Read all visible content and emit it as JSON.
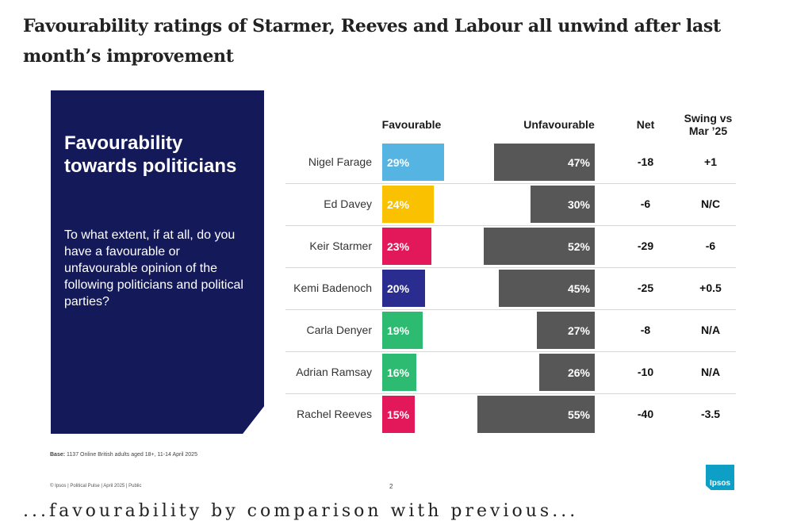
{
  "headline": "Favourability ratings of Starmer, Reeves and Labour all unwind after last month’s improvement",
  "panel": {
    "title": "Favourability towards politicians",
    "question": "To what extent, if at all, do you have a favourable or unfavourable opinion of the following politicians and political parties?"
  },
  "columns": {
    "favourable": "Favourable",
    "unfavourable": "Unfavourable",
    "net": "Net",
    "swing": "Swing vs Mar ’25"
  },
  "chart_data": {
    "type": "bar",
    "title": "Favourability towards politicians",
    "categories": [
      "Nigel Farage",
      "Ed Davey",
      "Keir Starmer",
      "Kemi Badenoch",
      "Carla Denyer",
      "Adrian Ramsay",
      "Rachel Reeves"
    ],
    "series": [
      {
        "name": "Favourable",
        "values": [
          29,
          24,
          23,
          20,
          19,
          16,
          15
        ],
        "labels": [
          "29%",
          "24%",
          "23%",
          "20%",
          "19%",
          "16%",
          "15%"
        ],
        "colors": [
          "#56b4e3",
          "#f9c100",
          "#e3185b",
          "#2a2d8f",
          "#2dbb72",
          "#2dbb72",
          "#e3185b"
        ]
      },
      {
        "name": "Unfavourable",
        "values": [
          47,
          30,
          52,
          45,
          27,
          26,
          55
        ],
        "labels": [
          "47%",
          "30%",
          "52%",
          "45%",
          "27%",
          "26%",
          "55%"
        ],
        "color": "#575757"
      }
    ],
    "net": [
      "-18",
      "-6",
      "-29",
      "-25",
      "-8",
      "-10",
      "-40"
    ],
    "swing": [
      "+1",
      "N/C",
      "-6",
      "+0.5",
      "N/A",
      "N/A",
      "-3.5"
    ],
    "xlabel": "",
    "ylabel": ""
  },
  "footnote": {
    "base_label": "Base:",
    "base_text": "1137 Online British adults aged 18+, 11-14 April 2025"
  },
  "footer": {
    "source": "© Ipsos | Political Pulse | April 2025 | Public",
    "page": "2",
    "logo": "Ipsos"
  },
  "cut_text": "...favourability by comparison with previous..."
}
